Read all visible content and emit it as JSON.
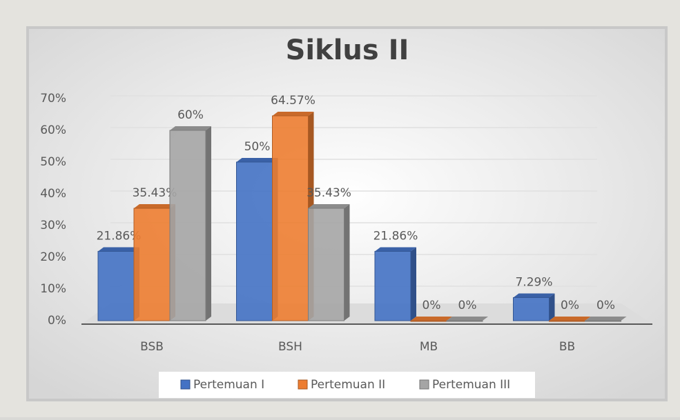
{
  "chart_data": {
    "type": "bar3d",
    "title": "Siklus II",
    "categories": [
      "BSB",
      "BSH",
      "MB",
      "BB"
    ],
    "series": [
      {
        "name": "Pertemuan I",
        "color": "#4472c4",
        "values": [
          21.86,
          50,
          21.86,
          7.29
        ],
        "value_labels": [
          "21.86%",
          "50%",
          "21.86%",
          "7.29%"
        ]
      },
      {
        "name": "Pertemuan II",
        "color": "#ed7d31",
        "values": [
          35.43,
          64.57,
          0,
          0
        ],
        "value_labels": [
          "35.43%",
          "64.57%",
          "0%",
          "0%"
        ]
      },
      {
        "name": "Pertemuan III",
        "color": "#a5a5a5",
        "values": [
          60,
          35.43,
          0,
          0
        ],
        "value_labels": [
          "60%",
          "35.43%",
          "0%",
          "0%"
        ]
      }
    ],
    "ylim": [
      0,
      70
    ],
    "yticks": [
      {
        "value": 0,
        "label": "0%"
      },
      {
        "value": 10,
        "label": "10%"
      },
      {
        "value": 20,
        "label": "20%"
      },
      {
        "value": 30,
        "label": "30%"
      },
      {
        "value": 40,
        "label": "40%"
      },
      {
        "value": 50,
        "label": "50%"
      },
      {
        "value": 60,
        "label": "60%"
      },
      {
        "value": 70,
        "label": "70%"
      }
    ],
    "grid": true,
    "legend": "bottom"
  }
}
